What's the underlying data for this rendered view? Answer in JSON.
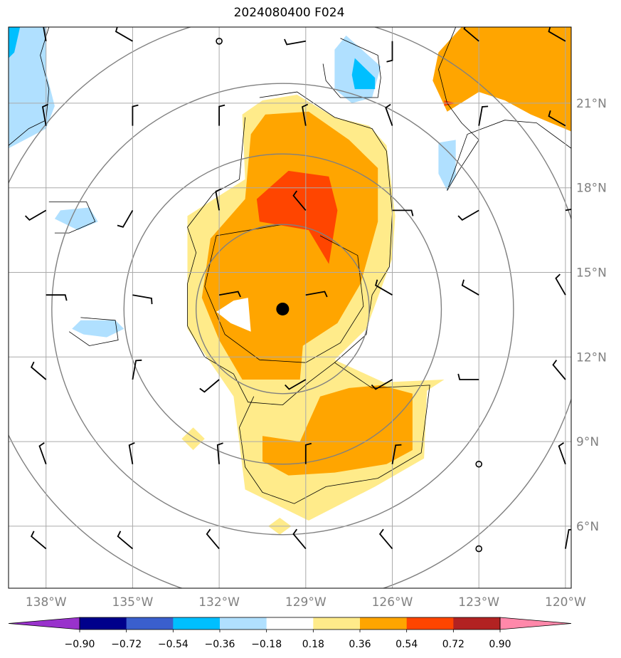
{
  "title": "2024080400 F024",
  "chart_data": {
    "type": "heatmap",
    "title": "2024080400 F024",
    "xlabel": "",
    "ylabel": "",
    "xlim": [
      -139.3,
      -119.8
    ],
    "ylim": [
      3.8,
      23.7
    ],
    "x_ticks": [
      {
        "value": -138,
        "label": "138°W"
      },
      {
        "value": -135,
        "label": "135°W"
      },
      {
        "value": -132,
        "label": "132°W"
      },
      {
        "value": -129,
        "label": "129°W"
      },
      {
        "value": -126,
        "label": "126°W"
      },
      {
        "value": -123,
        "label": "123°W"
      },
      {
        "value": -120,
        "label": "120°W"
      }
    ],
    "y_ticks": [
      {
        "value": 6,
        "label": "6°N"
      },
      {
        "value": 9,
        "label": "9°N"
      },
      {
        "value": 12,
        "label": "12°N"
      },
      {
        "value": 15,
        "label": "15°N"
      },
      {
        "value": 18,
        "label": "18°N"
      },
      {
        "value": 21,
        "label": "21°N"
      }
    ],
    "grid": true,
    "colorbar": {
      "levels": [
        -0.9,
        -0.72,
        -0.54,
        -0.36,
        -0.18,
        0.18,
        0.36,
        0.54,
        0.72,
        0.9
      ],
      "labels": [
        "−0.90",
        "−0.72",
        "−0.54",
        "−0.36",
        "−0.18",
        "0.18",
        "0.36",
        "0.54",
        "0.72",
        "0.90"
      ],
      "colors": [
        "#9932cc",
        "#00008b",
        "#3a5fcd",
        "#00bfff",
        "#b0e0ff",
        "#ffffff",
        "#ffeb8a",
        "#ffa500",
        "#ff4500",
        "#b22222",
        "#ff88aa"
      ]
    },
    "center_marker": {
      "lon": -129.8,
      "lat": 13.7
    },
    "range_rings_deg": [
      3,
      5.5,
      8,
      10.5
    ],
    "shaded_regions": [
      {
        "level": 0.18,
        "color": "#ffeb8a",
        "points": [
          [
            -130.5,
            21.1
          ],
          [
            -129.3,
            21.3
          ],
          [
            -128.0,
            20.5
          ],
          [
            -126.8,
            20.2
          ],
          [
            -126.2,
            19.5
          ],
          [
            -125.9,
            17.0
          ],
          [
            -126.0,
            15.5
          ],
          [
            -126.9,
            13.0
          ],
          [
            -128.0,
            11.9
          ],
          [
            -126.3,
            11.1
          ],
          [
            -124.2,
            11.2
          ],
          [
            -124.8,
            10.8
          ],
          [
            -124.9,
            8.4
          ],
          [
            -126.6,
            7.4
          ],
          [
            -128.9,
            6.2
          ],
          [
            -131.1,
            7.3
          ],
          [
            -131.5,
            10.6
          ],
          [
            -133.1,
            13.0
          ],
          [
            -133.1,
            17.0
          ],
          [
            -131.1,
            18.3
          ],
          [
            -131.2,
            20.6
          ]
        ]
      },
      {
        "level": 0.36,
        "color": "#ffa500",
        "points": [
          [
            -130.4,
            20.6
          ],
          [
            -128.9,
            20.7
          ],
          [
            -127.5,
            19.7
          ],
          [
            -126.5,
            18.7
          ],
          [
            -126.5,
            16.8
          ],
          [
            -127.1,
            14.6
          ],
          [
            -127.9,
            13.2
          ],
          [
            -129.1,
            12.4
          ],
          [
            -129.2,
            11.2
          ],
          [
            -131.2,
            11.2
          ],
          [
            -132.0,
            12.6
          ],
          [
            -132.6,
            14.1
          ],
          [
            -132.3,
            16.2
          ],
          [
            -131.1,
            17.6
          ],
          [
            -130.9,
            19.9
          ]
        ]
      },
      {
        "level": 0.36,
        "color": "#ffa500",
        "points": [
          [
            -128.5,
            10.6
          ],
          [
            -127.5,
            10.9
          ],
          [
            -126.4,
            11.0
          ],
          [
            -125.3,
            10.7
          ],
          [
            -125.3,
            8.7
          ],
          [
            -126.2,
            8.2
          ],
          [
            -128.0,
            7.9
          ],
          [
            -129.6,
            7.8
          ],
          [
            -130.5,
            8.3
          ],
          [
            -130.5,
            9.2
          ],
          [
            -129.2,
            9.0
          ]
        ]
      },
      {
        "level": 0.36,
        "color": "#ffa500",
        "points": [
          [
            -123.6,
            23.7
          ],
          [
            -119.8,
            23.7
          ],
          [
            -119.8,
            20.0
          ],
          [
            -121.2,
            20.6
          ],
          [
            -122.1,
            21.1
          ],
          [
            -123.0,
            21.4
          ],
          [
            -124.1,
            20.7
          ],
          [
            -124.6,
            21.8
          ],
          [
            -124.4,
            22.8
          ]
        ]
      },
      {
        "level": 0.54,
        "color": "#ff4500",
        "points": [
          [
            -130.7,
            17.6
          ],
          [
            -129.6,
            18.6
          ],
          [
            -128.2,
            18.4
          ],
          [
            -127.9,
            17.2
          ],
          [
            -128.2,
            15.3
          ],
          [
            -128.9,
            16.5
          ],
          [
            -130.6,
            16.8
          ]
        ]
      },
      {
        "level": 0.54,
        "color": "#ff4500",
        "points": [
          [
            -124.2,
            21.1
          ],
          [
            -123.8,
            21.0
          ],
          [
            -124.2,
            20.9
          ]
        ]
      },
      {
        "level": 0.18,
        "color": "#ffffff",
        "points": [
          [
            -131.5,
            14.0
          ],
          [
            -131.0,
            14.1
          ],
          [
            -130.9,
            12.9
          ],
          [
            -131.6,
            13.2
          ],
          [
            -132.1,
            13.6
          ]
        ]
      },
      {
        "level": 0.18,
        "color": "#ffeb8a",
        "points": [
          [
            -132.9,
            9.5
          ],
          [
            -132.5,
            9.1
          ],
          [
            -132.9,
            8.7
          ],
          [
            -133.3,
            9.1
          ]
        ]
      },
      {
        "level": 0.18,
        "color": "#ffeb8a",
        "points": [
          [
            -129.9,
            6.3
          ],
          [
            -129.5,
            6.0
          ],
          [
            -129.9,
            5.7
          ],
          [
            -130.3,
            6.0
          ]
        ]
      },
      {
        "level": -0.18,
        "color": "#b0e0ff",
        "points": [
          [
            -139.3,
            23.7
          ],
          [
            -138.0,
            23.7
          ],
          [
            -138.0,
            22.1
          ],
          [
            -137.7,
            20.9
          ],
          [
            -138.0,
            20.1
          ],
          [
            -139.3,
            19.4
          ]
        ]
      },
      {
        "level": -0.36,
        "color": "#00bfff",
        "points": [
          [
            -139.3,
            23.7
          ],
          [
            -138.9,
            23.7
          ],
          [
            -139.1,
            22.8
          ],
          [
            -139.3,
            22.6
          ]
        ]
      },
      {
        "level": -0.18,
        "color": "#b0e0ff",
        "points": [
          [
            -127.6,
            23.4
          ],
          [
            -126.4,
            22.3
          ],
          [
            -126.7,
            21.2
          ],
          [
            -127.4,
            21.0
          ],
          [
            -128.0,
            21.5
          ],
          [
            -128.0,
            22.9
          ]
        ]
      },
      {
        "level": -0.36,
        "color": "#00bfff",
        "points": [
          [
            -127.3,
            22.6
          ],
          [
            -126.6,
            21.9
          ],
          [
            -126.6,
            21.5
          ],
          [
            -127.3,
            21.5
          ],
          [
            -127.4,
            22.0
          ]
        ]
      },
      {
        "level": -0.18,
        "color": "#b0e0ff",
        "points": [
          [
            -123.8,
            19.7
          ],
          [
            -123.8,
            18.4
          ],
          [
            -124.1,
            17.9
          ],
          [
            -124.4,
            18.5
          ],
          [
            -124.4,
            19.6
          ]
        ]
      },
      {
        "level": -0.18,
        "color": "#b0e0ff",
        "points": [
          [
            -137.5,
            17.2
          ],
          [
            -136.5,
            17.3
          ],
          [
            -136.2,
            16.8
          ],
          [
            -136.9,
            16.5
          ],
          [
            -137.7,
            16.9
          ]
        ]
      },
      {
        "level": -0.18,
        "color": "#b0e0ff",
        "points": [
          [
            -136.8,
            13.3
          ],
          [
            -135.6,
            13.3
          ],
          [
            -135.3,
            13.0
          ],
          [
            -135.9,
            12.7
          ],
          [
            -136.7,
            12.8
          ],
          [
            -137.1,
            13.0
          ]
        ]
      }
    ],
    "contour_lines": [
      [
        [
          -130.6,
          21.2
        ],
        [
          -129.3,
          21.4
        ],
        [
          -128.0,
          20.5
        ],
        [
          -126.7,
          20.1
        ],
        [
          -126.2,
          19.3
        ],
        [
          -126.0,
          17.1
        ],
        [
          -126.1,
          15.2
        ],
        [
          -126.7,
          14.2
        ],
        [
          -126.9,
          12.8
        ],
        [
          -128.0,
          11.8
        ],
        [
          -128.9,
          11.1
        ],
        [
          -129.8,
          10.3
        ],
        [
          -131.0,
          10.4
        ],
        [
          -131.5,
          11.4
        ],
        [
          -132.5,
          12.0
        ],
        [
          -133.1,
          13.1
        ],
        [
          -133.1,
          14.6
        ],
        [
          -132.8,
          15.7
        ],
        [
          -133.1,
          16.6
        ],
        [
          -132.2,
          17.8
        ],
        [
          -131.3,
          18.3
        ],
        [
          -131.1,
          20.5
        ]
      ],
      [
        [
          -128.0,
          11.8
        ],
        [
          -126.7,
          10.9
        ],
        [
          -124.7,
          11.0
        ],
        [
          -125.0,
          8.6
        ],
        [
          -126.5,
          7.7
        ],
        [
          -128.3,
          7.4
        ],
        [
          -129.4,
          6.8
        ],
        [
          -130.5,
          7.2
        ],
        [
          -131.1,
          8.1
        ],
        [
          -131.3,
          9.5
        ],
        [
          -130.8,
          10.6
        ]
      ],
      [
        [
          -139.3,
          19.5
        ],
        [
          -138.6,
          20.1
        ],
        [
          -138.0,
          20.4
        ],
        [
          -137.9,
          21.5
        ],
        [
          -138.2,
          22.7
        ],
        [
          -137.9,
          23.7
        ]
      ],
      [
        [
          -127.8,
          23.3
        ],
        [
          -126.5,
          22.7
        ],
        [
          -126.4,
          21.9
        ],
        [
          -126.5,
          21.2
        ],
        [
          -127.8,
          21.2
        ],
        [
          -128.3,
          21.8
        ],
        [
          -128.4,
          22.4
        ]
      ],
      [
        [
          -123.8,
          23.7
        ],
        [
          -124.4,
          22.2
        ],
        [
          -124.1,
          21.0
        ],
        [
          -123.6,
          20.3
        ],
        [
          -123.0,
          19.7
        ],
        [
          -123.7,
          18.6
        ],
        [
          -124.1,
          17.9
        ],
        [
          -123.4,
          19.9
        ],
        [
          -122.1,
          20.4
        ],
        [
          -121.0,
          20.3
        ],
        [
          -119.8,
          19.4
        ]
      ],
      [
        [
          -137.9,
          17.5
        ],
        [
          -136.6,
          17.5
        ],
        [
          -136.3,
          16.8
        ],
        [
          -137.2,
          16.4
        ],
        [
          -137.7,
          16.4
        ]
      ],
      [
        [
          -136.8,
          13.4
        ],
        [
          -135.6,
          13.3
        ],
        [
          -135.5,
          12.6
        ],
        [
          -136.5,
          12.4
        ],
        [
          -137.2,
          12.9
        ]
      ],
      [
        [
          -129.8,
          16.7
        ],
        [
          -132.1,
          16.3
        ],
        [
          -132.5,
          14.5
        ],
        [
          -131.8,
          12.8
        ],
        [
          -130.6,
          11.9
        ],
        [
          -129.0,
          11.8
        ],
        [
          -127.8,
          12.5
        ],
        [
          -127.0,
          13.8
        ],
        [
          -127.2,
          15.6
        ],
        [
          -128.5,
          16.3
        ]
      ]
    ],
    "wind_barbs": [
      {
        "lon": -138.0,
        "lat": 23.2,
        "dir": 350,
        "speed": 10
      },
      {
        "lon": -135.0,
        "lat": 23.2,
        "dir": 300,
        "speed": 10
      },
      {
        "lon": -132.0,
        "lat": 23.2,
        "dir": 0,
        "speed": 0
      },
      {
        "lon": -129.0,
        "lat": 23.2,
        "dir": 260,
        "speed": 10
      },
      {
        "lon": -126.0,
        "lat": 23.2,
        "dir": 180,
        "speed": 10
      },
      {
        "lon": -123.0,
        "lat": 23.2,
        "dir": 310,
        "speed": 10
      },
      {
        "lon": -120.0,
        "lat": 23.2,
        "dir": 300,
        "speed": 10
      },
      {
        "lon": -138.0,
        "lat": 20.2,
        "dir": 350,
        "speed": 10
      },
      {
        "lon": -135.0,
        "lat": 20.2,
        "dir": 0,
        "speed": 10
      },
      {
        "lon": -132.0,
        "lat": 20.2,
        "dir": 0,
        "speed": 10
      },
      {
        "lon": -129.0,
        "lat": 20.2,
        "dir": 350,
        "speed": 10
      },
      {
        "lon": -126.0,
        "lat": 20.2,
        "dir": 340,
        "speed": 10
      },
      {
        "lon": -123.0,
        "lat": 20.2,
        "dir": 10,
        "speed": 10
      },
      {
        "lon": -120.0,
        "lat": 20.2,
        "dir": 300,
        "speed": 10
      },
      {
        "lon": -138.0,
        "lat": 17.2,
        "dir": 240,
        "speed": 10
      },
      {
        "lon": -135.0,
        "lat": 17.2,
        "dir": 210,
        "speed": 10
      },
      {
        "lon": -132.0,
        "lat": 17.2,
        "dir": 350,
        "speed": 10
      },
      {
        "lon": -129.0,
        "lat": 17.2,
        "dir": 320,
        "speed": 10
      },
      {
        "lon": -126.0,
        "lat": 17.2,
        "dir": 90,
        "speed": 10
      },
      {
        "lon": -123.0,
        "lat": 17.2,
        "dir": 240,
        "speed": 10
      },
      {
        "lon": -120.0,
        "lat": 17.2,
        "dir": 80,
        "speed": 10
      },
      {
        "lon": -138.0,
        "lat": 14.2,
        "dir": 90,
        "speed": 10
      },
      {
        "lon": -135.0,
        "lat": 14.2,
        "dir": 100,
        "speed": 10
      },
      {
        "lon": -132.0,
        "lat": 14.2,
        "dir": 80,
        "speed": 10
      },
      {
        "lon": -129.0,
        "lat": 14.2,
        "dir": 80,
        "speed": 10
      },
      {
        "lon": -126.0,
        "lat": 14.2,
        "dir": 300,
        "speed": 10
      },
      {
        "lon": -123.0,
        "lat": 14.2,
        "dir": 300,
        "speed": 10
      },
      {
        "lon": -120.0,
        "lat": 14.2,
        "dir": 330,
        "speed": 10
      },
      {
        "lon": -138.0,
        "lat": 11.2,
        "dir": 310,
        "speed": 10
      },
      {
        "lon": -135.0,
        "lat": 11.2,
        "dir": 10,
        "speed": 10
      },
      {
        "lon": -132.0,
        "lat": 11.2,
        "dir": 230,
        "speed": 10
      },
      {
        "lon": -129.0,
        "lat": 11.2,
        "dir": 240,
        "speed": 10
      },
      {
        "lon": -126.0,
        "lat": 11.2,
        "dir": 240,
        "speed": 10
      },
      {
        "lon": -123.0,
        "lat": 11.2,
        "dir": 270,
        "speed": 10
      },
      {
        "lon": -120.0,
        "lat": 11.2,
        "dir": 320,
        "speed": 10
      },
      {
        "lon": -138.0,
        "lat": 8.2,
        "dir": 340,
        "speed": 10
      },
      {
        "lon": -135.0,
        "lat": 8.2,
        "dir": 350,
        "speed": 10
      },
      {
        "lon": -132.0,
        "lat": 8.2,
        "dir": 355,
        "speed": 10
      },
      {
        "lon": -129.0,
        "lat": 8.2,
        "dir": 0,
        "speed": 10
      },
      {
        "lon": -126.0,
        "lat": 8.2,
        "dir": 10,
        "speed": 10
      },
      {
        "lon": -123.0,
        "lat": 8.2,
        "dir": 0,
        "speed": 0
      },
      {
        "lon": -120.0,
        "lat": 8.2,
        "dir": 340,
        "speed": 10
      },
      {
        "lon": -138.0,
        "lat": 5.2,
        "dir": 310,
        "speed": 10
      },
      {
        "lon": -135.0,
        "lat": 5.2,
        "dir": 310,
        "speed": 10
      },
      {
        "lon": -132.0,
        "lat": 5.2,
        "dir": 320,
        "speed": 10
      },
      {
        "lon": -129.0,
        "lat": 5.2,
        "dir": 320,
        "speed": 10
      },
      {
        "lon": -126.0,
        "lat": 5.2,
        "dir": 320,
        "speed": 10
      },
      {
        "lon": -123.0,
        "lat": 5.2,
        "dir": 0,
        "speed": 0
      },
      {
        "lon": -120.0,
        "lat": 5.2,
        "dir": 10,
        "speed": 10
      }
    ]
  }
}
